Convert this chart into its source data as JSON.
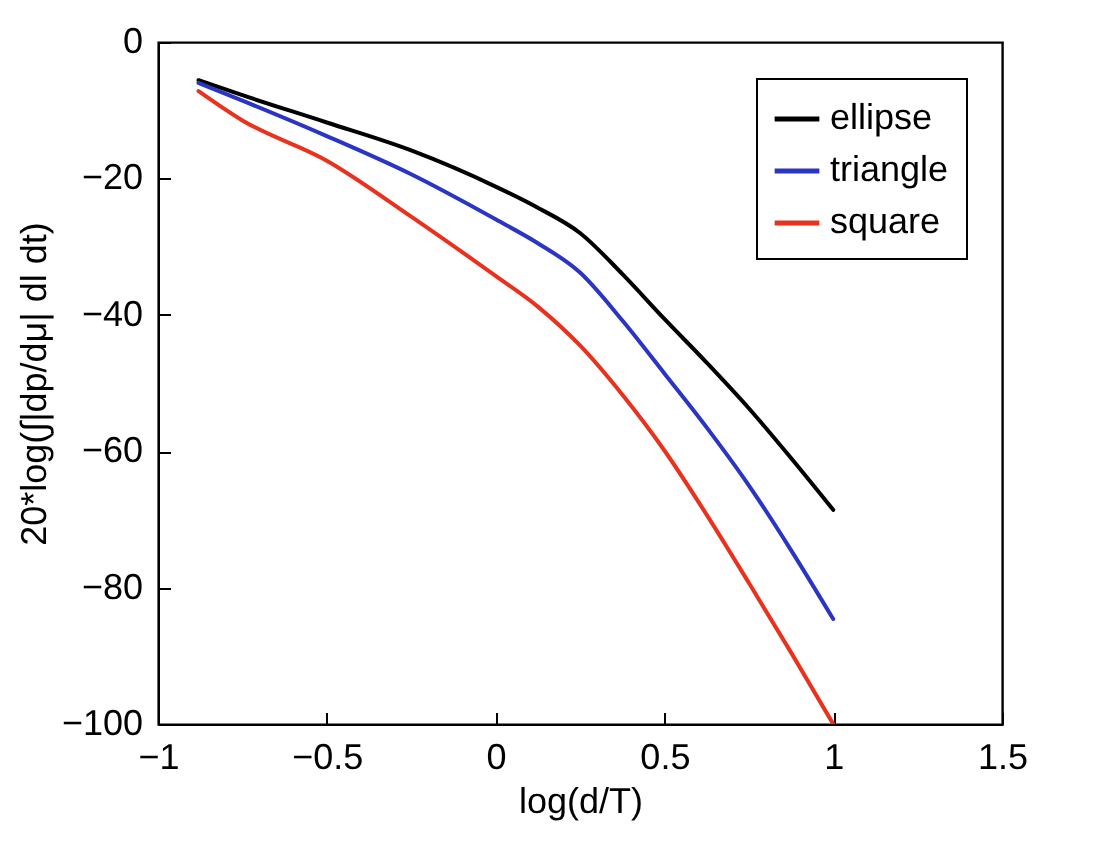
{
  "chart_data": {
    "type": "line",
    "xlabel": "log(d/T)",
    "ylabel": "20*log(∫|dp/dμ| dl dt)",
    "x": [
      -0.88,
      -0.75,
      -0.5,
      -0.25,
      0,
      0.125,
      0.25,
      0.375,
      0.5,
      0.625,
      0.75,
      0.875,
      1
    ],
    "series": [
      {
        "name": "ellipse",
        "color": "#000000",
        "values": [
          -5.6,
          -7.8,
          -11.8,
          -15.9,
          -21.2,
          -24.3,
          -28,
          -34,
          -40.6,
          -47,
          -53.7,
          -61,
          -68.6
        ]
      },
      {
        "name": "triangle",
        "color": "#2b35c4",
        "values": [
          -6,
          -8.6,
          -13.8,
          -19.4,
          -26,
          -29.5,
          -33.8,
          -40.8,
          -48.6,
          -56.5,
          -65,
          -74.5,
          -84.6
        ]
      },
      {
        "name": "square",
        "color": "#e8321e",
        "values": [
          -7.2,
          -11.5,
          -17.4,
          -25.6,
          -34.3,
          -38.8,
          -44.5,
          -51.7,
          -59.9,
          -69.3,
          -79.3,
          -89.5,
          -100
        ]
      }
    ],
    "xlim": [
      -1,
      1.5
    ],
    "xticks": [
      -1,
      -0.5,
      0,
      0.5,
      1,
      1.5
    ],
    "ylim": [
      -100,
      0
    ],
    "yticks": [
      -100,
      -80,
      -60,
      -40,
      -20,
      0
    ],
    "legend": "top right",
    "grid": false
  }
}
